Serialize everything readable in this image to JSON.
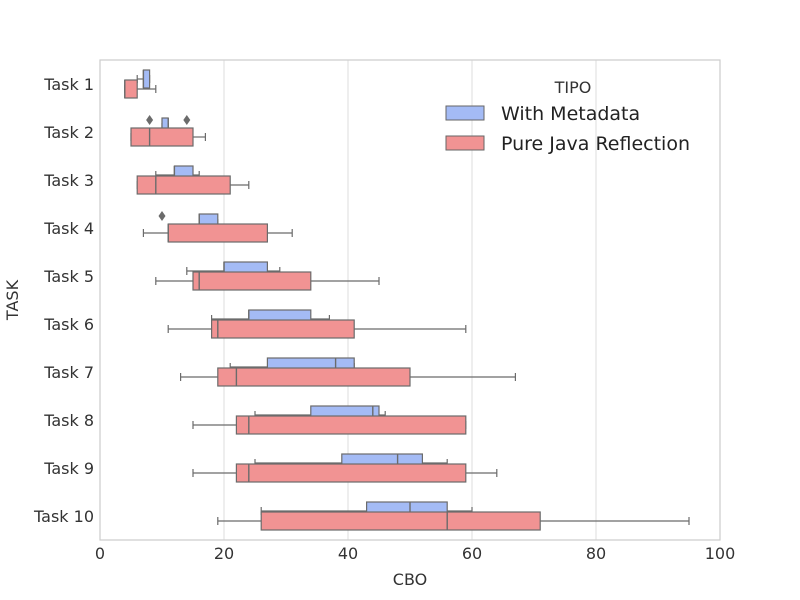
{
  "chart_data": {
    "type": "horizontal-boxplot",
    "xlabel": "CBO",
    "ylabel": "TASK",
    "xlim": [
      0,
      100
    ],
    "xticks": [
      0,
      20,
      40,
      60,
      80,
      100
    ],
    "grid": "vertical",
    "legend": {
      "title": "TIPO",
      "placement": "top-right",
      "entries": [
        {
          "label": "With Metadata",
          "color": "#a4bbf5"
        },
        {
          "label": "Pure Java Reflection",
          "color": "#f19393"
        }
      ]
    },
    "categories": [
      "Task 1",
      "Task 2",
      "Task 3",
      "Task 4",
      "Task 5",
      "Task 6",
      "Task 7",
      "Task 8",
      "Task 9",
      "Task 10"
    ],
    "series": [
      {
        "name": "With Metadata",
        "color": "#a4bbf5",
        "boxes": [
          {
            "whislo": 6,
            "q1": 7,
            "med": 7,
            "q3": 8,
            "whishi": 8,
            "fliers": []
          },
          {
            "whislo": 10,
            "q1": 10,
            "med": 11,
            "q3": 11,
            "whishi": 11,
            "fliers": [
              8,
              14
            ]
          },
          {
            "whislo": 9,
            "q1": 12,
            "med": 12,
            "q3": 15,
            "whishi": 16,
            "fliers": []
          },
          {
            "whislo": 16,
            "q1": 16,
            "med": 16,
            "q3": 19,
            "whishi": 19,
            "fliers": [
              10
            ]
          },
          {
            "whislo": 14,
            "q1": 20,
            "med": 20,
            "q3": 27,
            "whishi": 29,
            "fliers": []
          },
          {
            "whislo": 18,
            "q1": 24,
            "med": 24,
            "q3": 34,
            "whishi": 37,
            "fliers": []
          },
          {
            "whislo": 21,
            "q1": 27,
            "med": 38,
            "q3": 41,
            "whishi": 41,
            "fliers": []
          },
          {
            "whislo": 25,
            "q1": 34,
            "med": 44,
            "q3": 45,
            "whishi": 46,
            "fliers": []
          },
          {
            "whislo": 25,
            "q1": 39,
            "med": 48,
            "q3": 52,
            "whishi": 56,
            "fliers": []
          },
          {
            "whislo": 26,
            "q1": 43,
            "med": 50,
            "q3": 56,
            "whishi": 60,
            "fliers": []
          }
        ]
      },
      {
        "name": "Pure Java Reflection",
        "color": "#f19393",
        "boxes": [
          {
            "whislo": 4,
            "q1": 4,
            "med": 4,
            "q3": 6,
            "whishi": 9,
            "fliers": []
          },
          {
            "whislo": 5,
            "q1": 5,
            "med": 8,
            "q3": 15,
            "whishi": 17,
            "fliers": []
          },
          {
            "whislo": 6,
            "q1": 6,
            "med": 9,
            "q3": 21,
            "whishi": 24,
            "fliers": []
          },
          {
            "whislo": 7,
            "q1": 11,
            "med": 11,
            "q3": 27,
            "whishi": 31,
            "fliers": []
          },
          {
            "whislo": 9,
            "q1": 15,
            "med": 16,
            "q3": 34,
            "whishi": 45,
            "fliers": []
          },
          {
            "whislo": 11,
            "q1": 18,
            "med": 19,
            "q3": 41,
            "whishi": 59,
            "fliers": []
          },
          {
            "whislo": 13,
            "q1": 19,
            "med": 22,
            "q3": 50,
            "whishi": 67,
            "fliers": []
          },
          {
            "whislo": 15,
            "q1": 22,
            "med": 24,
            "q3": 59,
            "whishi": 59,
            "fliers": []
          },
          {
            "whislo": 15,
            "q1": 22,
            "med": 24,
            "q3": 59,
            "whishi": 64,
            "fliers": []
          },
          {
            "whislo": 19,
            "q1": 26,
            "med": 56,
            "q3": 71,
            "whishi": 95,
            "fliers": []
          }
        ]
      }
    ]
  }
}
